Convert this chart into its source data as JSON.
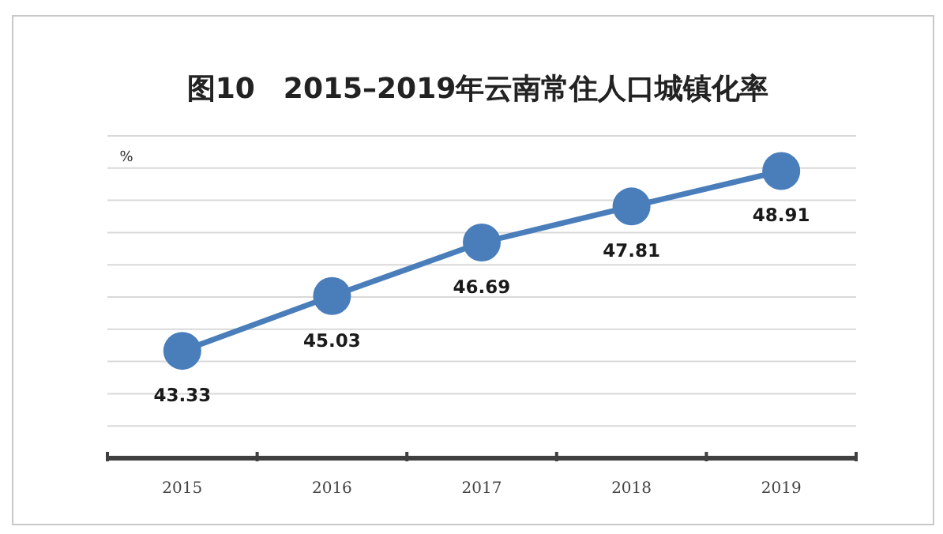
{
  "chart_data": {
    "type": "line",
    "title": "图10　2015–2019年云南常住人口城镇化率",
    "ylabel": "%",
    "categories": [
      "2015",
      "2016",
      "2017",
      "2018",
      "2019"
    ],
    "series": [
      {
        "color": "#4a7ebb",
        "values": [
          43.33,
          45.03,
          46.69,
          47.81,
          48.91
        ]
      }
    ],
    "ylim": [
      40,
      50
    ],
    "yticks": [
      {
        "value": 41,
        "label": null
      },
      {
        "value": 42,
        "label": null
      },
      {
        "value": 43,
        "label": null
      },
      {
        "value": 44,
        "label": null
      },
      {
        "value": 45,
        "label": null
      },
      {
        "value": 46,
        "label": null
      },
      {
        "value": 47,
        "label": null
      },
      {
        "value": 48,
        "label": null
      },
      {
        "value": 49,
        "label": null
      },
      {
        "value": 50,
        "label": null
      }
    ],
    "grid": "y",
    "marker": "circle",
    "data_labels": true
  }
}
